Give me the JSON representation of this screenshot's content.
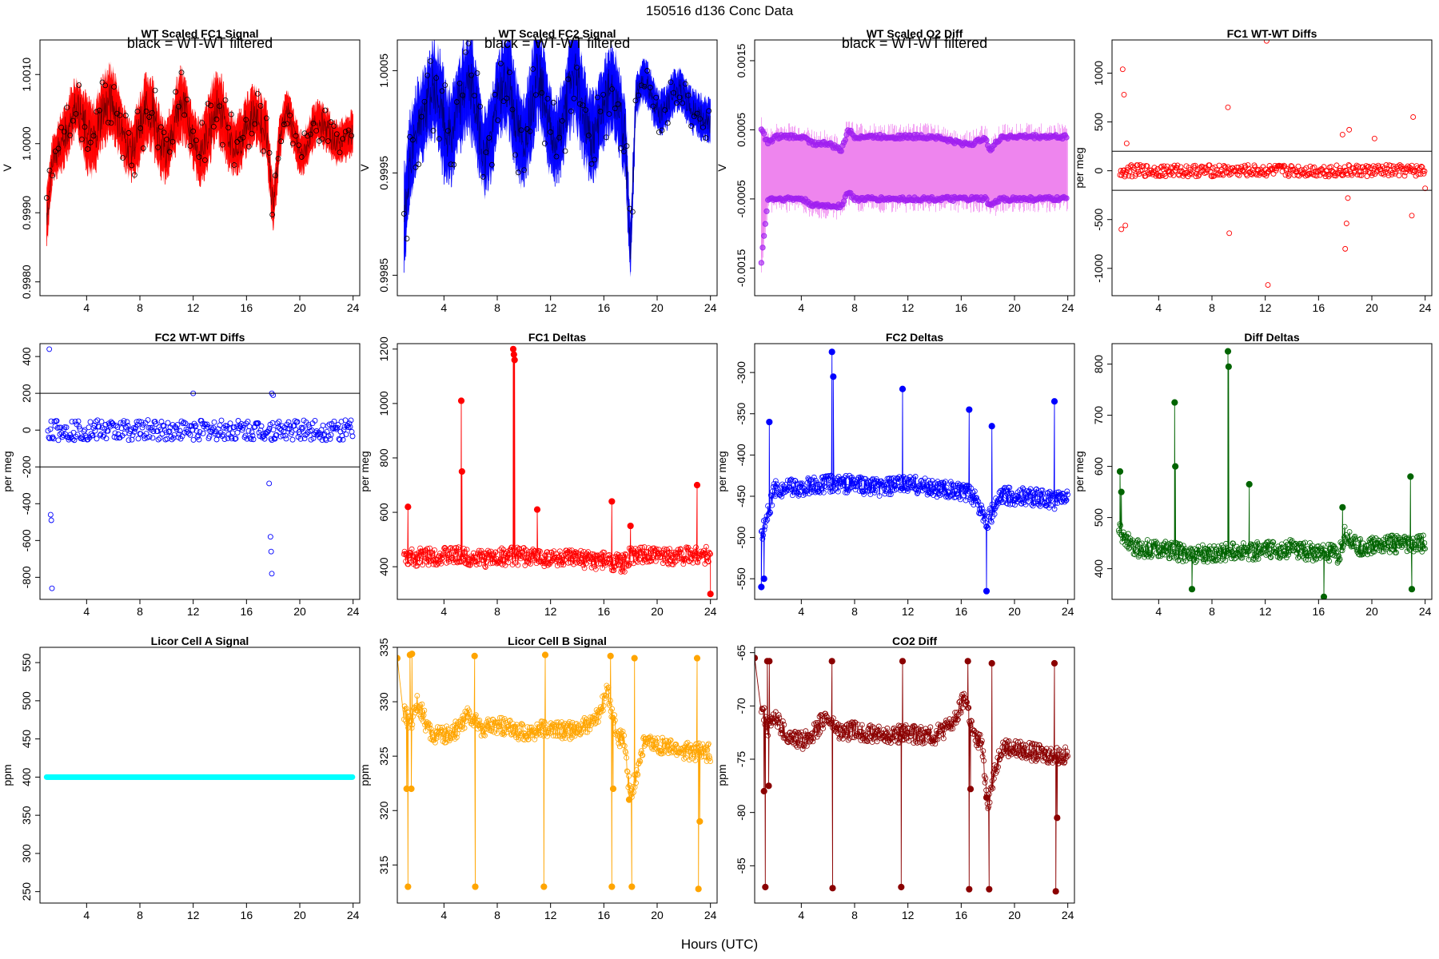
{
  "page": {
    "main_title": "150516   d136   Conc Data",
    "x_label": "Hours (UTC)"
  },
  "chart_data": [
    {
      "id": "fc1-signal",
      "type": "line",
      "title": "WT Scaled FC1 Signal",
      "note": "black = WT-WT filtered",
      "xlabel": "",
      "ylabel": "V",
      "color": "#ff0000",
      "overlay_color": "#000000",
      "xlim": [
        0.5,
        24.5
      ],
      "ylim": [
        0.9978,
        1.0015
      ],
      "xticks": [
        4,
        8,
        12,
        16,
        20,
        24
      ],
      "yticks": [
        0.998,
        0.999,
        1.0,
        1.001
      ],
      "ytick_labels": [
        "0.9980",
        "0.9990",
        "1.0000",
        "1.0010"
      ],
      "style": "band",
      "series": [
        {
          "name": "signal",
          "x": [
            1.0,
            1.5,
            2,
            3,
            4,
            5,
            6,
            7,
            8,
            9,
            10,
            11,
            12,
            13,
            14,
            15,
            16,
            17,
            17.5,
            18,
            18.5,
            19,
            20,
            21,
            22,
            23,
            24
          ],
          "center": [
            0.9988,
            0.9999,
            1.0002,
            1.0003,
            1.0002,
            1.0005,
            1.0003,
            1.0002,
            1.0001,
            1.0003,
            1.0001,
            1.0003,
            1.0002,
            1.0001,
            1.0003,
            1.0002,
            1.0001,
            1.0003,
            1.0004,
            0.9992,
            1.0,
            1.0003,
            1.0,
            1.0002,
            1.0001,
            1.0002,
            1.0
          ],
          "amp": [
            0.0005,
            0.0003,
            0.0004,
            0.0004,
            0.0005,
            0.0005,
            0.0005,
            0.0004,
            0.0005,
            0.0005,
            0.0004,
            0.0005,
            0.0004,
            0.0005,
            0.0005,
            0.0004,
            0.0004,
            0.0004,
            0.0004,
            0.0004,
            0.0003,
            0.0003,
            0.0003,
            0.0003,
            0.0003,
            0.0003,
            0.0003
          ]
        }
      ]
    },
    {
      "id": "fc2-signal",
      "type": "line",
      "title": "WT Scaled FC2 Signal",
      "note": "black = WT-WT filtered",
      "xlabel": "",
      "ylabel": "V",
      "color": "#0000ff",
      "overlay_color": "#000000",
      "xlim": [
        0.5,
        24.5
      ],
      "ylim": [
        0.9983,
        1.0008
      ],
      "xticks": [
        4,
        8,
        12,
        16,
        20,
        24
      ],
      "yticks": [
        0.9985,
        0.9995,
        1.0005
      ],
      "ytick_labels": [
        "0.9985",
        "0.9995",
        "1.0005"
      ],
      "style": "band",
      "series": [
        {
          "name": "signal",
          "x": [
            1.0,
            1.5,
            2,
            3,
            4,
            5,
            6,
            7,
            8,
            9,
            10,
            11,
            12,
            13,
            14,
            15,
            16,
            17,
            17.6,
            18.0,
            18.4,
            19,
            20,
            21,
            22,
            23,
            24
          ],
          "center": [
            0.9988,
            0.9998,
            1.0002,
            1.0001,
            1.0,
            1.0002,
            1.0001,
            0.9999,
            1.0001,
            1.0002,
            1.0,
            1.0002,
            1.0,
            1.0001,
            1.0002,
            1.0001,
            1.0,
            1.0002,
            1.0001,
            0.9988,
            1.0002,
            1.0003,
            1.0002,
            1.0002,
            1.0002,
            1.0002,
            0.9999
          ],
          "amp": [
            0.0005,
            0.0004,
            0.0004,
            0.0004,
            0.0005,
            0.0004,
            0.0005,
            0.0004,
            0.0004,
            0.0005,
            0.0004,
            0.0005,
            0.0004,
            0.0004,
            0.0005,
            0.0004,
            0.0004,
            0.0004,
            0.0004,
            0.0003,
            0.0002,
            0.0002,
            0.0002,
            0.0002,
            0.0002,
            0.0002,
            0.0002
          ]
        }
      ]
    },
    {
      "id": "o2-diff",
      "type": "line",
      "title": "WT Scaled O2 Diff",
      "note": "black = WT-WT filtered",
      "xlabel": "",
      "ylabel": "V",
      "color": "#ee82ee",
      "overlay_color": "#a020f0",
      "xlim": [
        0.5,
        24.5
      ],
      "ylim": [
        -0.0019,
        0.0018
      ],
      "xticks": [
        4,
        8,
        12,
        16,
        20,
        24
      ],
      "yticks": [
        -0.0015,
        -0.0005,
        0.0005,
        0.0015
      ],
      "ytick_labels": [
        "-0.0015",
        "-0.0005",
        "0.0005",
        "0.0015"
      ],
      "style": "twoband",
      "series": [
        {
          "name": "upper",
          "x": [
            1.0,
            1.5,
            2,
            3,
            4,
            5,
            6,
            7,
            7.5,
            8,
            10,
            12,
            14,
            16,
            17,
            17.8,
            18.2,
            19,
            20,
            22,
            24
          ],
          "values": [
            0.0005,
            0.0003,
            0.0004,
            0.0004,
            0.0004,
            0.0003,
            0.0003,
            0.0002,
            0.0005,
            0.0004,
            0.0004,
            0.0004,
            0.0004,
            0.0003,
            0.0003,
            0.0004,
            0.0002,
            0.0004,
            0.0004,
            0.0004,
            0.0004
          ]
        },
        {
          "name": "lower",
          "x": [
            1.0,
            1.5,
            2,
            3,
            4,
            5,
            6,
            7,
            7.5,
            8,
            10,
            12,
            14,
            16,
            17,
            17.8,
            18.2,
            19,
            20,
            22,
            24
          ],
          "values": [
            -0.0014,
            -0.0005,
            -0.0005,
            -0.0005,
            -0.0005,
            -0.0006,
            -0.0006,
            -0.0006,
            -0.0004,
            -0.0005,
            -0.0005,
            -0.0005,
            -0.0005,
            -0.0005,
            -0.0005,
            -0.0005,
            -0.0006,
            -0.0005,
            -0.0005,
            -0.0005,
            -0.0005
          ]
        }
      ]
    },
    {
      "id": "fc1-wtwt",
      "type": "scatter",
      "title": "FC1 WT-WT Diffs",
      "xlabel": "",
      "ylabel": "per meg",
      "color": "#ff0000",
      "xlim": [
        0.5,
        24.5
      ],
      "ylim": [
        -1280,
        1340
      ],
      "xticks": [
        4,
        8,
        12,
        16,
        20,
        24
      ],
      "yticks": [
        -1000,
        -500,
        0,
        500,
        1000
      ],
      "hlines": [
        200,
        -200
      ],
      "style": "scatter",
      "series": [
        {
          "name": "diffs",
          "noise": 60,
          "x": [
            1.2,
            1.3,
            1.4,
            1.5,
            1.6,
            9.2,
            9.3,
            12.1,
            12.2,
            17.8,
            18.0,
            18.1,
            18.2,
            18.3,
            20.2,
            23.0,
            23.1,
            24.0
          ],
          "values": [
            -600,
            1040,
            780,
            -560,
            280,
            650,
            -640,
            1330,
            -1170,
            370,
            -800,
            -540,
            -280,
            420,
            330,
            -460,
            550,
            -180
          ]
        }
      ]
    },
    {
      "id": "fc2-wtwt",
      "type": "scatter",
      "title": "FC2 WT-WT Diffs",
      "xlabel": "",
      "ylabel": "per meg",
      "color": "#0000ff",
      "xlim": [
        0.5,
        24.5
      ],
      "ylim": [
        -920,
        470
      ],
      "xticks": [
        4,
        8,
        12,
        16,
        20,
        24
      ],
      "yticks": [
        -800,
        -600,
        -400,
        -200,
        0,
        200,
        400
      ],
      "hlines": [
        200,
        -200
      ],
      "style": "scatter",
      "series": [
        {
          "name": "diffs",
          "noise": 55,
          "x": [
            1.2,
            1.3,
            1.35,
            1.4,
            17.7,
            17.8,
            17.85,
            17.9,
            12.0,
            17.9,
            18.0
          ],
          "values": [
            440,
            -460,
            -490,
            -860,
            -290,
            -580,
            -660,
            -780,
            200,
            200,
            190
          ]
        }
      ]
    },
    {
      "id": "fc1-deltas",
      "type": "line",
      "title": "FC1 Deltas",
      "xlabel": "",
      "ylabel": "per meg",
      "color": "#ff0000",
      "xlim": [
        0.5,
        24.5
      ],
      "ylim": [
        280,
        1220
      ],
      "xticks": [
        4,
        8,
        12,
        16,
        20,
        24
      ],
      "yticks": [
        400,
        600,
        800,
        1000,
        1200
      ],
      "style": "noisy",
      "series": [
        {
          "name": "deltas",
          "x": [
            1,
            3,
            5,
            7,
            9,
            11,
            13,
            15,
            16.5,
            17.5,
            18,
            19,
            21,
            23,
            24
          ],
          "values": [
            430,
            440,
            440,
            430,
            440,
            435,
            430,
            425,
            420,
            410,
            440,
            440,
            440,
            445,
            440
          ],
          "spikes_x": [
            1.3,
            5.3,
            5.35,
            9.2,
            9.25,
            9.3,
            11.0,
            16.6,
            18.0,
            23.0,
            24.0
          ],
          "spikes_y": [
            620,
            1010,
            750,
            1200,
            1180,
            1160,
            610,
            640,
            550,
            700,
            300
          ]
        }
      ]
    },
    {
      "id": "fc2-deltas",
      "type": "line",
      "title": "FC2 Deltas",
      "xlabel": "",
      "ylabel": "per meg",
      "color": "#0000ff",
      "xlim": [
        0.5,
        24.5
      ],
      "ylim": [
        -575,
        -265
      ],
      "xticks": [
        4,
        8,
        12,
        16,
        20,
        24
      ],
      "yticks": [
        -550,
        -500,
        -450,
        -400,
        -350,
        -300
      ],
      "style": "noisy",
      "series": [
        {
          "name": "deltas",
          "x": [
            1,
            2,
            4,
            6,
            8,
            10,
            12,
            14,
            16,
            17,
            18,
            19,
            21,
            23,
            24
          ],
          "values": [
            -500,
            -440,
            -440,
            -435,
            -435,
            -440,
            -435,
            -440,
            -445,
            -450,
            -480,
            -450,
            -450,
            -455,
            -450
          ],
          "spikes_x": [
            1.0,
            1.2,
            1.6,
            6.3,
            6.4,
            11.6,
            16.6,
            17.9,
            18.3,
            23.0
          ],
          "spikes_y": [
            -560,
            -550,
            -360,
            -275,
            -305,
            -320,
            -345,
            -565,
            -365,
            -335
          ]
        }
      ]
    },
    {
      "id": "diff-deltas",
      "type": "line",
      "title": "Diff Deltas",
      "xlabel": "",
      "ylabel": "per meg",
      "color": "#006400",
      "xlim": [
        0.5,
        24.5
      ],
      "ylim": [
        340,
        840
      ],
      "xticks": [
        4,
        8,
        12,
        16,
        20,
        24
      ],
      "yticks": [
        400,
        500,
        600,
        700,
        800
      ],
      "style": "noisy",
      "series": [
        {
          "name": "deltas",
          "x": [
            1,
            2,
            4,
            6,
            8,
            10,
            12,
            14,
            16,
            17,
            17.5,
            18,
            19,
            21,
            23,
            24
          ],
          "values": [
            480,
            440,
            440,
            430,
            430,
            435,
            435,
            440,
            430,
            430,
            420,
            470,
            440,
            450,
            445,
            450
          ],
          "spikes_x": [
            1.1,
            1.2,
            5.2,
            5.25,
            6.5,
            9.2,
            9.25,
            10.8,
            16.4,
            17.8,
            22.9,
            23.0
          ],
          "spikes_y": [
            590,
            550,
            725,
            600,
            360,
            825,
            795,
            565,
            345,
            520,
            580,
            360
          ]
        }
      ]
    },
    {
      "id": "licor-a",
      "type": "line",
      "title": "Licor Cell A Signal",
      "xlabel": "",
      "ylabel": "ppm",
      "color": "#00ffff",
      "xlim": [
        0.5,
        24.5
      ],
      "ylim": [
        235,
        570
      ],
      "xticks": [
        4,
        8,
        12,
        16,
        20,
        24
      ],
      "yticks": [
        250,
        300,
        350,
        400,
        450,
        500,
        550
      ],
      "style": "flat",
      "series": [
        {
          "name": "cell-a",
          "x": [
            1.0,
            24.0
          ],
          "values": [
            400,
            400
          ]
        }
      ]
    },
    {
      "id": "licor-b",
      "type": "line",
      "title": "Licor Cell B Signal",
      "xlabel": "",
      "ylabel": "ppm",
      "color": "#ffa500",
      "xlim": [
        0.5,
        24.5
      ],
      "ylim": [
        311.5,
        335
      ],
      "xticks": [
        4,
        8,
        12,
        16,
        20,
        24
      ],
      "yticks": [
        315,
        320,
        325,
        330,
        335
      ],
      "style": "noisy",
      "series": [
        {
          "name": "cell-b",
          "x": [
            1,
            1.5,
            2,
            3,
            4,
            5,
            5.8,
            6.5,
            7,
            8,
            10,
            12,
            14,
            15.5,
            16.3,
            17,
            17.5,
            18,
            19,
            20,
            22,
            24
          ],
          "values": [
            329,
            328,
            330,
            327,
            326.8,
            327.5,
            328.8,
            328,
            327.5,
            327.8,
            327.2,
            327.5,
            327.3,
            328.5,
            331,
            326.8,
            326.5,
            321,
            326.3,
            326,
            325.5,
            325.3
          ],
          "spikes_x": [
            0.5,
            1.2,
            1.3,
            1.45,
            1.55,
            1.6,
            6.3,
            6.35,
            11.5,
            11.6,
            16.5,
            16.6,
            16.7,
            17.9,
            18.1,
            18.3,
            23.0,
            23.1,
            23.2
          ],
          "spikes_y": [
            334,
            322,
            313,
            334.3,
            322,
            334.4,
            334.2,
            313,
            313,
            334.3,
            334.2,
            313,
            322,
            321,
            313,
            334,
            334,
            312.8,
            319
          ]
        }
      ]
    },
    {
      "id": "co2-diff",
      "type": "line",
      "title": "CO2 Diff",
      "xlabel": "",
      "ylabel": "ppm",
      "color": "#8b0000",
      "xlim": [
        0.5,
        24.5
      ],
      "ylim": [
        -88.5,
        -64.5
      ],
      "xticks": [
        4,
        8,
        12,
        16,
        20,
        24
      ],
      "yticks": [
        -85,
        -80,
        -75,
        -70,
        -65
      ],
      "style": "noisy",
      "series": [
        {
          "name": "co2",
          "x": [
            1,
            1.5,
            2,
            3,
            4,
            5,
            5.8,
            6.5,
            7,
            8,
            10,
            12,
            14,
            15.5,
            16.3,
            17,
            17.5,
            18,
            19,
            20,
            22,
            24
          ],
          "values": [
            -70,
            -72,
            -71,
            -73,
            -73.3,
            -72.5,
            -71,
            -72,
            -72.5,
            -72.3,
            -72.8,
            -72.6,
            -72.8,
            -71.5,
            -69,
            -73.1,
            -73.3,
            -79,
            -73.8,
            -74,
            -74.5,
            -74.7
          ],
          "spikes_x": [
            0.5,
            1.2,
            1.3,
            1.45,
            1.55,
            1.6,
            6.3,
            6.35,
            11.5,
            11.6,
            16.5,
            16.6,
            16.7,
            17.9,
            18.1,
            18.3,
            23.0,
            23.1,
            23.2
          ],
          "spikes_y": [
            -65.5,
            -78,
            -87,
            -65.8,
            -77.5,
            -65.8,
            -65.8,
            -87.1,
            -87,
            -65.8,
            -65.8,
            -87.2,
            -77.8,
            -78.6,
            -87.2,
            -66,
            -66,
            -87.4,
            -80.5
          ]
        }
      ]
    }
  ]
}
